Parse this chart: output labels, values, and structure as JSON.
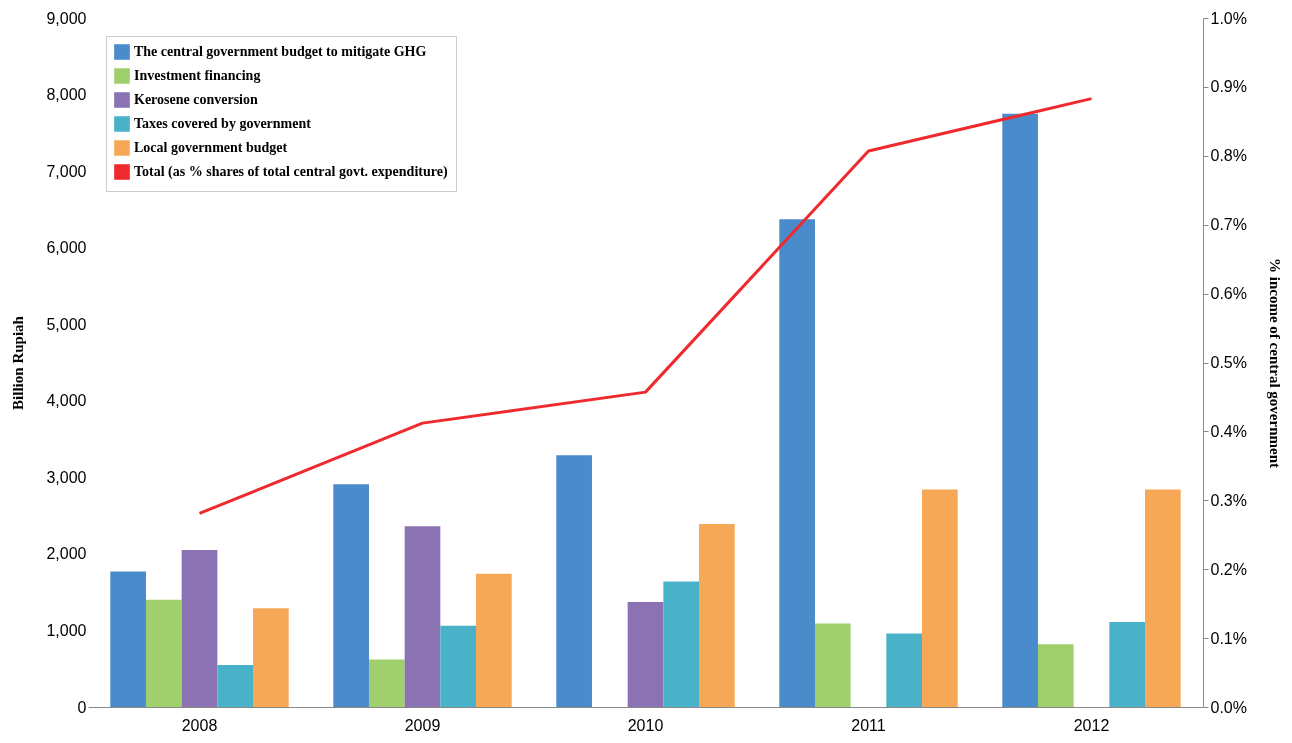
{
  "chart_data": {
    "type": "bar",
    "categories": [
      "2008",
      "2009",
      "2010",
      "2011",
      "2012"
    ],
    "ylabel": "Billion Rupiah",
    "y2label": "% income of central government",
    "ylim": [
      0,
      9000
    ],
    "yticks": [
      {
        "value": 0,
        "label": "0"
      },
      {
        "value": 1000,
        "label": "1,000"
      },
      {
        "value": 2000,
        "label": "2,000"
      },
      {
        "value": 3000,
        "label": "3,000"
      },
      {
        "value": 4000,
        "label": "4,000"
      },
      {
        "value": 5000,
        "label": "5,000"
      },
      {
        "value": 6000,
        "label": "6,000"
      },
      {
        "value": 7000,
        "label": "7,000"
      },
      {
        "value": 8000,
        "label": "8,000"
      },
      {
        "value": 9000,
        "label": "9,000"
      }
    ],
    "y2lim": [
      0,
      1.0
    ],
    "y2ticks": [
      {
        "value": 0,
        "label": "0.0%"
      },
      {
        "value": 0.1,
        "label": "0.1%"
      },
      {
        "value": 0.2,
        "label": "0.2%"
      },
      {
        "value": 0.3,
        "label": "0.3%"
      },
      {
        "value": 0.4,
        "label": "0.4%"
      },
      {
        "value": 0.5,
        "label": "0.5%"
      },
      {
        "value": 0.6,
        "label": "0.6%"
      },
      {
        "value": 0.7,
        "label": "0.7%"
      },
      {
        "value": 0.8,
        "label": "0.8%"
      },
      {
        "value": 0.9,
        "label": "0.9%"
      },
      {
        "value": 1.0,
        "label": "1.0%"
      }
    ],
    "grid": false,
    "legend": "top left",
    "series": [
      {
        "name": "The central government budget to mitigate GHG",
        "color": "#4a8ccb",
        "values": [
          1770,
          2910,
          3290,
          6370,
          7750
        ]
      },
      {
        "name": "Investment financing",
        "color": "#a0cf6e",
        "values": [
          1400,
          620,
          null,
          1090,
          820
        ]
      },
      {
        "name": "Kerosene conversion",
        "color": "#8b72b2",
        "values": [
          2050,
          2360,
          1370,
          null,
          null
        ]
      },
      {
        "name": "Taxes covered by government",
        "color": "#4ab2c8",
        "values": [
          550,
          1060,
          1640,
          960,
          1110
        ]
      },
      {
        "name": "Local government budget",
        "color": "#f7a856",
        "values": [
          1290,
          1740,
          2390,
          2840,
          2840
        ]
      },
      {
        "name": "Total (as % shares of total central govt. expenditure)",
        "type": "line",
        "axis": "y2",
        "color": "#ee2a2e",
        "values": [
          0.281,
          0.412,
          0.457,
          0.807,
          0.883
        ]
      }
    ]
  }
}
